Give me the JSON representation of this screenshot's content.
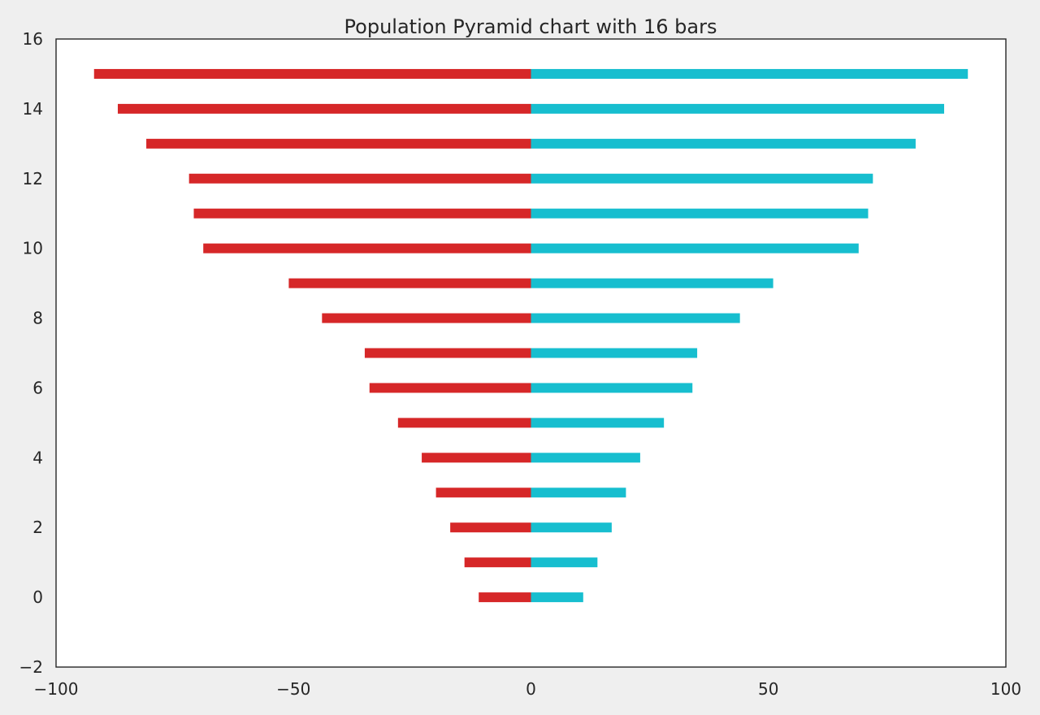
{
  "chart_data": {
    "type": "bar",
    "orientation": "horizontal",
    "title": "Population Pyramid chart with 16 bars",
    "xlabel": "",
    "ylabel": "",
    "xlim": [
      -100,
      100
    ],
    "ylim": [
      -2,
      16
    ],
    "xticks": [
      -100,
      -50,
      0,
      50,
      100
    ],
    "xtick_labels": [
      "−100",
      "−50",
      "0",
      "50",
      "100"
    ],
    "yticks": [
      -2,
      0,
      2,
      4,
      6,
      8,
      10,
      12,
      14,
      16
    ],
    "ytick_labels": [
      "−2",
      "0",
      "2",
      "4",
      "6",
      "8",
      "10",
      "12",
      "14",
      "16"
    ],
    "categories": [
      0,
      1,
      2,
      3,
      4,
      5,
      6,
      7,
      8,
      9,
      10,
      11,
      12,
      13,
      14,
      15
    ],
    "series": [
      {
        "color": "#d62728",
        "values": [
          -11,
          -14,
          -17,
          -20,
          -23,
          -28,
          -34,
          -35,
          -44,
          -51,
          -69,
          -71,
          -72,
          -81,
          -87,
          -92
        ]
      },
      {
        "color": "#17becf",
        "values": [
          11,
          14,
          17,
          20,
          23,
          28,
          34,
          35,
          44,
          51,
          69,
          71,
          72,
          81,
          87,
          92
        ]
      }
    ],
    "grid": false,
    "legend": "none"
  }
}
